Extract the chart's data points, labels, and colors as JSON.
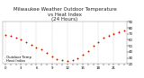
{
  "title": "Milwaukee Weather Outdoor Temperature\nvs Heat Index\n(24 Hours)",
  "legend": [
    "Outdoor Temp",
    "Heat Index"
  ],
  "temp_color": "#cc0000",
  "heat_color": "#ff8800",
  "background": "#ffffff",
  "grid_color": "#999999",
  "ylim": [
    20,
    90
  ],
  "hours": [
    0,
    1,
    2,
    3,
    4,
    5,
    6,
    7,
    8,
    9,
    10,
    11,
    12,
    13,
    14,
    15,
    16,
    17,
    18,
    19,
    20,
    21,
    22,
    23
  ],
  "temp": [
    68,
    66,
    63,
    60,
    56,
    52,
    48,
    44,
    38,
    32,
    28,
    26,
    25,
    27,
    30,
    35,
    42,
    50,
    57,
    63,
    67,
    70,
    73,
    75
  ],
  "heat": [
    68,
    66,
    63,
    60,
    56,
    52,
    48,
    44,
    38,
    32,
    28,
    26,
    25,
    27,
    30,
    35,
    42,
    50,
    57,
    64,
    68,
    71,
    74,
    76
  ],
  "yticks": [
    20,
    30,
    40,
    50,
    60,
    70,
    80,
    90
  ],
  "xtick_every": 3,
  "vgrid_every": 3,
  "title_fontsize": 4.0,
  "legend_fontsize": 2.8,
  "tick_fontsize": 2.8,
  "dot_size": 1.5,
  "figwidth": 1.6,
  "figheight": 0.87,
  "dpi": 100
}
